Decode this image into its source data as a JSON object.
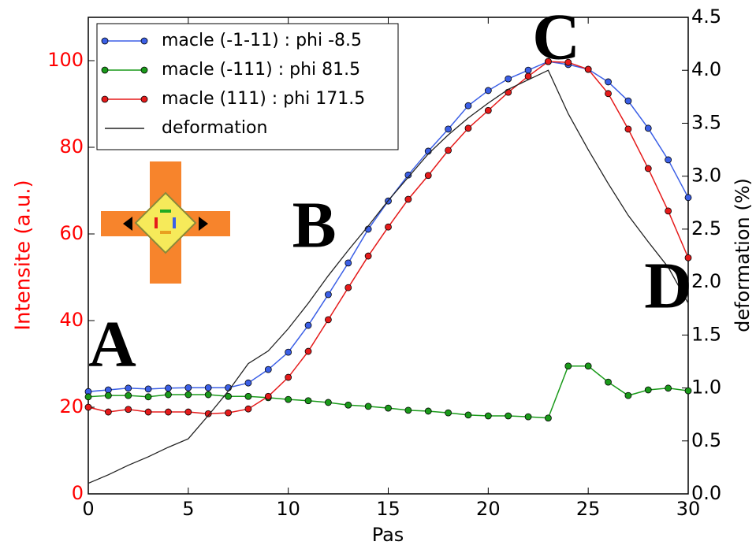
{
  "chart_data": {
    "type": "line",
    "x_label": "Pas",
    "y_label": "Intensite (a.u.)",
    "y2_label": "deformation (%)",
    "x": [
      0,
      1,
      2,
      3,
      4,
      5,
      6,
      7,
      8,
      9,
      10,
      11,
      12,
      13,
      14,
      15,
      16,
      17,
      18,
      19,
      20,
      21,
      22,
      23,
      24,
      25,
      26,
      27,
      28,
      29,
      30
    ],
    "series": [
      {
        "name": "macle (-1-11) : phi -8.5",
        "color": "#3b5fe6",
        "marker": true,
        "values": [
          23.6,
          24.0,
          24.4,
          24.2,
          24.4,
          24.5,
          24.5,
          24.5,
          25.6,
          28.7,
          32.7,
          38.9,
          46.0,
          53.3,
          61.1,
          67.6,
          73.6,
          79.1,
          84.2,
          89.6,
          93.1,
          95.8,
          97.8,
          99.8,
          99.1,
          98.0,
          95.1,
          90.7,
          84.4,
          77.1,
          68.4
        ]
      },
      {
        "name": "macle (-111) : phi 81.5",
        "color": "#1a9a1a",
        "marker": true,
        "values": [
          22.4,
          22.7,
          22.7,
          22.4,
          22.9,
          22.9,
          22.9,
          22.5,
          22.5,
          22.2,
          21.8,
          21.5,
          21.1,
          20.5,
          20.2,
          19.8,
          19.3,
          19.1,
          18.7,
          18.2,
          18.0,
          18.0,
          17.8,
          17.5,
          29.5,
          29.5,
          25.8,
          22.7,
          24.0,
          24.4,
          23.8
        ]
      },
      {
        "name": "macle (111) : phi 171.5",
        "color": "#e51a1a",
        "marker": true,
        "values": [
          20.0,
          18.9,
          19.5,
          18.9,
          18.9,
          18.9,
          18.5,
          18.7,
          19.6,
          22.5,
          26.9,
          32.9,
          40.2,
          47.6,
          54.9,
          61.6,
          68.0,
          73.5,
          79.3,
          84.4,
          88.5,
          92.7,
          96.4,
          99.8,
          99.6,
          98.0,
          92.4,
          84.2,
          75.1,
          65.3,
          54.5
        ]
      },
      {
        "name": "deformation",
        "color": "#222222",
        "marker": false,
        "axis": "y2",
        "values": [
          0.1,
          0.18,
          0.27,
          0.35,
          0.44,
          0.52,
          0.74,
          0.97,
          1.23,
          1.35,
          1.56,
          1.8,
          2.06,
          2.3,
          2.53,
          2.77,
          2.99,
          3.21,
          3.39,
          3.55,
          3.69,
          3.82,
          3.91,
          4.0,
          3.59,
          3.25,
          2.93,
          2.63,
          2.38,
          2.14,
          1.8
        ]
      }
    ],
    "xlim": [
      0,
      30
    ],
    "xticks": [
      0,
      5,
      10,
      15,
      20,
      25,
      30
    ],
    "ylim": [
      0,
      110
    ],
    "yticks": [
      0,
      20,
      40,
      60,
      80,
      100
    ],
    "y_tick_color": "#ff0000",
    "y2lim": [
      0,
      4.5
    ],
    "y2ticks": [
      {
        "value": 0,
        "label": "0.0"
      },
      0.5,
      {
        "value": 1,
        "label": "1.0"
      },
      1.5,
      {
        "value": 2,
        "label": "2.0"
      },
      2.5,
      {
        "value": 3,
        "label": "3.0"
      },
      3.5,
      {
        "value": 4,
        "label": "4.0"
      },
      4.5
    ],
    "legend": "upper left",
    "annotations": [
      {
        "text": "A",
        "x": 1.2,
        "y": 33
      },
      {
        "text": "B",
        "x": 11.3,
        "y": 60.5
      },
      {
        "text": "C",
        "x": 23.4,
        "y": 104
      },
      {
        "text": "D",
        "x": 29,
        "y": 46.5
      }
    ]
  }
}
